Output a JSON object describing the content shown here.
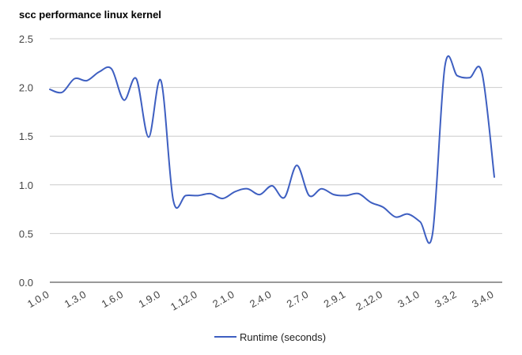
{
  "chart_data": {
    "type": "line",
    "title": "scc performance linux kernel",
    "xlabel": "",
    "ylabel": "",
    "ylim": [
      0,
      2.5
    ],
    "yticks": [
      "0.0",
      "0.5",
      "1.0",
      "1.5",
      "2.0",
      "2.5"
    ],
    "x_tick_labels": [
      "1.0.0",
      "1.3.0",
      "1.6.0",
      "1.9.0",
      "1.12.0",
      "2.1.0",
      "2.4.0",
      "2.7.0",
      "2.9.1",
      "2.12.0",
      "3.1.0",
      "3.3.2",
      "3.4.0"
    ],
    "grid": true,
    "legend": "bottom",
    "color": "#3e5fc1",
    "series": [
      {
        "name": "Runtime (seconds)",
        "values": [
          1.98,
          1.95,
          2.09,
          2.07,
          2.16,
          2.19,
          1.87,
          2.09,
          1.49,
          2.07,
          0.84,
          0.89,
          0.89,
          0.91,
          0.86,
          0.93,
          0.96,
          0.9,
          0.99,
          0.87,
          1.2,
          0.89,
          0.96,
          0.9,
          0.89,
          0.91,
          0.82,
          0.77,
          0.67,
          0.7,
          0.62,
          0.5,
          2.22,
          2.12,
          2.1,
          2.15,
          1.08
        ]
      }
    ]
  }
}
